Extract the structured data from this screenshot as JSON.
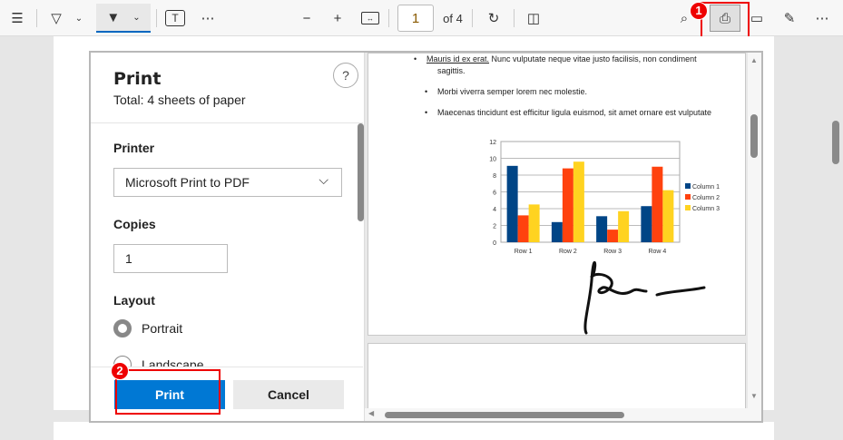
{
  "toolbar": {
    "page_number": "1",
    "page_count": "of 4",
    "icons": [
      "contents-icon",
      "highlight-icon",
      "draw-icon",
      "text-icon",
      "more-icon",
      "zoom-out-icon",
      "zoom-in-icon",
      "fit-page-icon",
      "rotate-icon",
      "page-view-icon",
      "search-icon",
      "print-icon",
      "save-icon",
      "save-as-icon",
      "more-icon"
    ]
  },
  "dialog": {
    "title": "Print",
    "subtitle": "Total: 4 sheets of paper",
    "help": "?",
    "printer_label": "Printer",
    "printer_value": "Microsoft Print to PDF",
    "copies_label": "Copies",
    "copies_value": "1",
    "layout_label": "Layout",
    "layout_options": [
      "Portrait",
      "Landscape"
    ],
    "layout_selected": "Portrait",
    "print_button": "Print",
    "cancel_button": "Cancel"
  },
  "annotations": {
    "badge1": "1",
    "badge2": "2",
    "highlight_color": "#e00000"
  },
  "preview": {
    "bullets": [
      "Mauris id ex erat.",
      "Nunc vulputate neque vitae justo facilisis, non condiment",
      "sagittis.",
      "Morbi viverra semper lorem nec molestie.",
      "Maecenas tincidunt est efficitur ligula euismod, sit amet ornare est vulputate"
    ]
  },
  "chart_data": {
    "type": "bar",
    "categories": [
      "Row 1",
      "Row 2",
      "Row 3",
      "Row 4"
    ],
    "series": [
      {
        "name": "Column 1",
        "color": "#004586",
        "values": [
          9.1,
          2.4,
          3.1,
          4.3
        ]
      },
      {
        "name": "Column 2",
        "color": "#ff420e",
        "values": [
          3.2,
          8.8,
          1.5,
          9.0
        ]
      },
      {
        "name": "Column 3",
        "color": "#ffd320",
        "values": [
          4.5,
          9.6,
          3.7,
          6.2
        ]
      }
    ],
    "yticks": [
      "0",
      "2",
      "4",
      "6",
      "8",
      "10",
      "12"
    ],
    "ylim": [
      0,
      12
    ],
    "grid": true,
    "legend": "right"
  }
}
